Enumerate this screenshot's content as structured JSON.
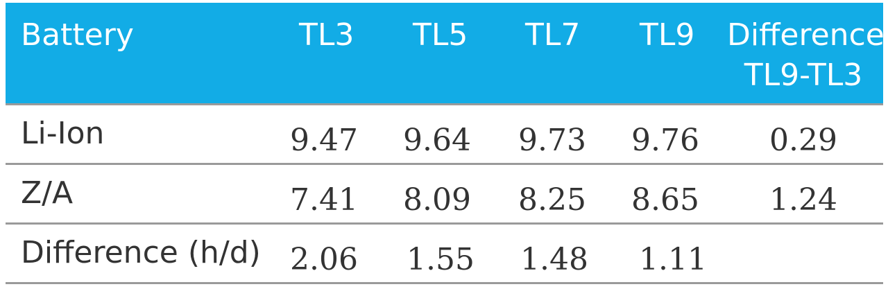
{
  "table": {
    "header": {
      "battery": "Battery",
      "tl3": "TL3",
      "tl5": "TL5",
      "tl7": "TL7",
      "tl9": "TL9",
      "difference_line1": "Difference",
      "difference_line2": "TL9-TL3"
    },
    "rows": [
      {
        "label": "Li-Ion",
        "tl3": "9.47",
        "tl5": "9.64",
        "tl7": "9.73",
        "tl9": "9.76",
        "difference": "0.29"
      },
      {
        "label": "Z/A",
        "tl3": "7.41",
        "tl5": "8.09",
        "tl7": "8.25",
        "tl9": "8.65",
        "difference": "1.24"
      },
      {
        "label": "Difference (h/d)",
        "tl3": "2.06",
        "tl5": "1.55",
        "tl7": "1.48",
        "tl9": "1.11",
        "difference": ""
      }
    ]
  },
  "colors": {
    "header_background": "#12ace6",
    "header_text": "#ffffff",
    "body_text": "#333333",
    "rule": "#9a9a9a"
  }
}
